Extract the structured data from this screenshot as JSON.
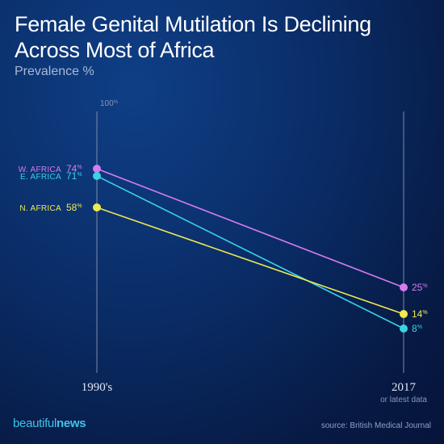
{
  "title": "Female Genital Mutilation Is Declining Across Most of Africa",
  "subtitle": "Prevalence %",
  "source": "source: British Medical Journal",
  "brand": {
    "light": "beautiful",
    "bold": "news"
  },
  "chart_data": {
    "type": "line",
    "title": "Female Genital Mutilation Is Declining Across Most of Africa",
    "ylabel": "Prevalence %",
    "x": [
      "1990's",
      "2017"
    ],
    "x_sublabels": [
      "",
      "or latest data"
    ],
    "ylim": [
      0,
      100
    ],
    "ytick_label": "100",
    "unit": "%",
    "series": [
      {
        "name": "W. AFRICA",
        "values": [
          74,
          25
        ],
        "color": "#d67bf0"
      },
      {
        "name": "E. AFRICA",
        "values": [
          71,
          8
        ],
        "color": "#39d2e3"
      },
      {
        "name": "N. AFRICA",
        "values": [
          58,
          14
        ],
        "color": "#f0ea4e"
      }
    ]
  }
}
